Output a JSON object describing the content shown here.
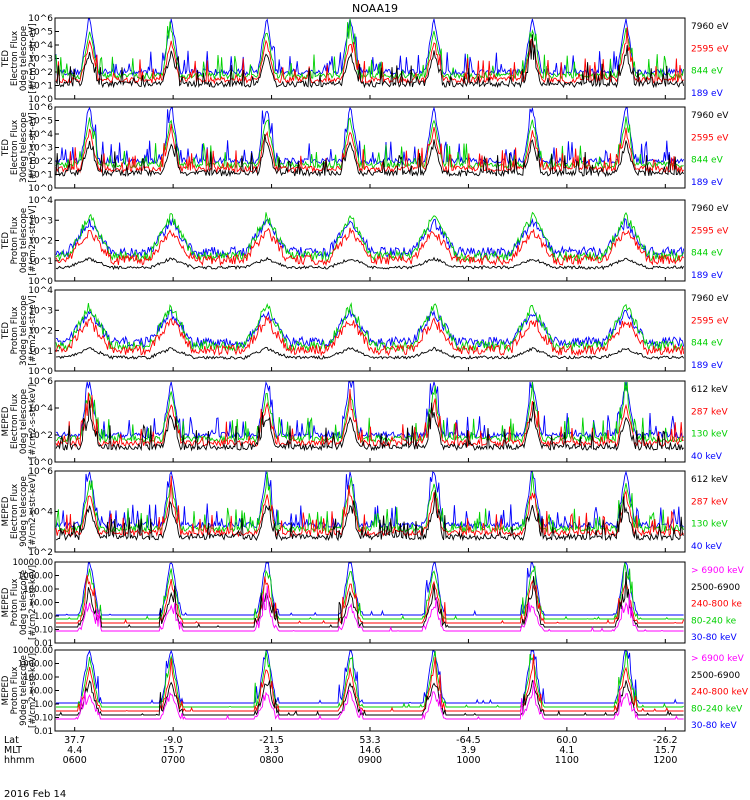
{
  "title": "NOAA19",
  "date_label": "2016 Feb 14",
  "colors": {
    "black": "#000000",
    "red": "#ff0000",
    "green": "#00d000",
    "blue": "#0000ff",
    "magenta": "#ff00ff"
  },
  "chart_data": [
    {
      "type": "line",
      "panel": "TED electron 0 deg",
      "ylabel": [
        "TED",
        "Electron Flux",
        "0deg telescope",
        "[#/cm2-s-str-eV]"
      ],
      "y_scale": "log",
      "yticks": [
        "10^0",
        "10^1",
        "10^2",
        "10^3",
        "10^4",
        "10^5",
        "10^6"
      ],
      "ylim": [
        1,
        1000000
      ],
      "legend": [
        {
          "label": "7960 eV",
          "color": "black"
        },
        {
          "label": "2595 eV",
          "color": "red"
        },
        {
          "label": "844 eV",
          "color": "green"
        },
        {
          "label": "189 eV",
          "color": "blue"
        }
      ]
    },
    {
      "type": "line",
      "panel": "TED electron 30 deg",
      "ylabel": [
        "TED",
        "Electron Flux",
        "30deg telescope",
        "[#/cm2-s-str-eV]"
      ],
      "y_scale": "log",
      "yticks": [
        "10^0",
        "10^1",
        "10^2",
        "10^3",
        "10^4",
        "10^5",
        "10^6"
      ],
      "ylim": [
        1,
        1000000
      ],
      "legend": [
        {
          "label": "7960 eV",
          "color": "black"
        },
        {
          "label": "2595 eV",
          "color": "red"
        },
        {
          "label": "844 eV",
          "color": "green"
        },
        {
          "label": "189 eV",
          "color": "blue"
        }
      ]
    },
    {
      "type": "line",
      "panel": "TED proton 0 deg",
      "ylabel": [
        "TED",
        "Proton Flux",
        "0deg telescope",
        "[#/cm2-s-str-eV]"
      ],
      "y_scale": "log",
      "yticks": [
        "10^0",
        "10^1",
        "10^2",
        "10^3",
        "10^4"
      ],
      "ylim": [
        1,
        10000
      ],
      "legend": [
        {
          "label": "7960 eV",
          "color": "black"
        },
        {
          "label": "2595 eV",
          "color": "red"
        },
        {
          "label": "844 eV",
          "color": "green"
        },
        {
          "label": "189 eV",
          "color": "blue"
        }
      ]
    },
    {
      "type": "line",
      "panel": "TED proton 30 deg",
      "ylabel": [
        "TED",
        "Proton Flux",
        "30deg telescope",
        "[#/cm2-s-str-eV]"
      ],
      "y_scale": "log",
      "yticks": [
        "10^0",
        "10^1",
        "10^2",
        "10^3",
        "10^4"
      ],
      "ylim": [
        1,
        10000
      ],
      "legend": [
        {
          "label": "7960 eV",
          "color": "black"
        },
        {
          "label": "2595 eV",
          "color": "red"
        },
        {
          "label": "844 eV",
          "color": "green"
        },
        {
          "label": "189 eV",
          "color": "blue"
        }
      ]
    },
    {
      "type": "line",
      "panel": "MEPED electron 0 deg",
      "ylabel": [
        "MEPED",
        "Electron Flux",
        "0deg telescope",
        "[#/cm2-s-str-keV]"
      ],
      "y_scale": "log",
      "yticks": [
        "10^0",
        "10^2",
        "10^4",
        "10^6"
      ],
      "ylim": [
        1,
        10000000
      ],
      "legend": [
        {
          "label": "612 keV",
          "color": "black"
        },
        {
          "label": "287 keV",
          "color": "red"
        },
        {
          "label": "130 keV",
          "color": "green"
        },
        {
          "label": "40 keV",
          "color": "blue"
        }
      ]
    },
    {
      "type": "line",
      "panel": "MEPED electron 90 deg",
      "ylabel": [
        "MEPED",
        "Electron Flux",
        "90deg telescope",
        "[#/cm2-s-str-keV]"
      ],
      "y_scale": "log",
      "yticks": [
        "10^2",
        "10^4",
        "10^6"
      ],
      "ylim": [
        10,
        10000000
      ],
      "legend": [
        {
          "label": "612 keV",
          "color": "black"
        },
        {
          "label": "287 keV",
          "color": "red"
        },
        {
          "label": "130 keV",
          "color": "green"
        },
        {
          "label": "40 keV",
          "color": "blue"
        }
      ]
    },
    {
      "type": "line",
      "panel": "MEPED proton 0 deg",
      "ylabel": [
        "MEPED",
        "Proton Flux",
        "0deg telescope",
        "[#/cm2-s-str-keV]"
      ],
      "y_scale": "log",
      "yticks": [
        "0.01",
        "0.10",
        "1.00",
        "10.00",
        "100.00",
        "1000.00",
        "10000.00"
      ],
      "ylim": [
        0.01,
        10000
      ],
      "legend": [
        {
          "label": "> 6900 keV",
          "color": "magenta"
        },
        {
          "label": "2500-6900",
          "color": "black"
        },
        {
          "label": "240-800 ke",
          "color": "red"
        },
        {
          "label": "80-240 ke",
          "color": "green"
        },
        {
          "label": "30-80 keV",
          "color": "blue"
        }
      ]
    },
    {
      "type": "line",
      "panel": "MEPED proton 90 deg",
      "ylabel": [
        "MEPED",
        "Proton Flux",
        "90deg telescope",
        "[#/cm2-s-str-keV]"
      ],
      "y_scale": "log",
      "yticks": [
        "0.01",
        "0.10",
        "1.00",
        "10.00",
        "100.00",
        "1000.00",
        "10000.00"
      ],
      "ylim": [
        0.01,
        10000
      ],
      "legend": [
        {
          "label": "> 6900 keV",
          "color": "magenta"
        },
        {
          "label": "2500-6900",
          "color": "black"
        },
        {
          "label": "240-800 keV",
          "color": "red"
        },
        {
          "label": "80-240 keV",
          "color": "green"
        },
        {
          "label": "30-80 keV",
          "color": "blue"
        }
      ]
    }
  ],
  "x_axis": {
    "row_labels": [
      "Lat",
      "MLT",
      "hhmm"
    ],
    "xlim_hours": [
      5.8,
      12.2
    ],
    "ticks": [
      {
        "hour": 6,
        "lat": "37.7",
        "mlt": "4.4",
        "hhmm": "0600"
      },
      {
        "hour": 7,
        "lat": "-9.0",
        "mlt": "15.7",
        "hhmm": "0700"
      },
      {
        "hour": 8,
        "lat": "-21.5",
        "mlt": "3.3",
        "hhmm": "0800"
      },
      {
        "hour": 9,
        "lat": "53.3",
        "mlt": "14.6",
        "hhmm": "0900"
      },
      {
        "hour": 10,
        "lat": "-64.5",
        "mlt": "3.9",
        "hhmm": "1000"
      },
      {
        "hour": 11,
        "lat": "60.0",
        "mlt": "4.1",
        "hhmm": "1100"
      },
      {
        "hour": 12,
        "lat": "-26.2",
        "mlt": "15.7",
        "hhmm": "1200"
      }
    ]
  }
}
